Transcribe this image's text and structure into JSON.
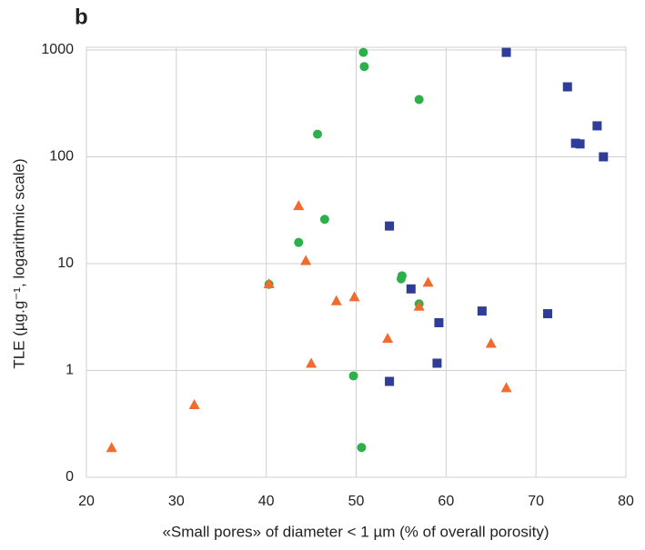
{
  "chart_data": {
    "type": "scatter",
    "panel_label": "b",
    "x_label": "«Small pores» of diameter < 1 µm (% of overall porosity)",
    "y_label": "TLE (µg.g⁻¹, logarithmic scale)",
    "xlim": [
      20,
      80
    ],
    "xticks": [
      20,
      30,
      40,
      50,
      60,
      70,
      80
    ],
    "ylim": [
      0.1,
      1000
    ],
    "yticks": [
      {
        "value": 0.1,
        "label": "0"
      },
      1,
      10,
      100,
      1000
    ],
    "log_y": true,
    "grid": true,
    "series": [
      {
        "color": "#2e3d98",
        "marker": "square",
        "x": [
          66.7,
          73.5,
          76.8,
          74.4,
          74.9,
          77.5,
          53.7,
          56.1,
          59.2,
          64.0,
          71.3,
          59.0,
          53.7
        ],
        "values": [
          950,
          452,
          195,
          134,
          132,
          100,
          22.5,
          5.8,
          2.8,
          3.6,
          3.4,
          1.17,
          0.79
        ]
      },
      {
        "color": "#2db04b",
        "marker": "circle",
        "x": [
          50.8,
          50.9,
          57.0,
          45.7,
          46.5,
          43.6,
          40.3,
          55.1,
          55.0,
          57.0,
          49.7,
          50.6
        ],
        "values": [
          950,
          700,
          344,
          163,
          26,
          15.8,
          6.4,
          7.7,
          7.2,
          4.2,
          0.89,
          0.19
        ]
      },
      {
        "color": "#f26a2e",
        "marker": "triangle",
        "x": [
          22.8,
          32.0,
          40.3,
          43.6,
          44.4,
          45.0,
          47.8,
          49.8,
          53.5,
          57.0,
          58.0,
          65.0,
          66.7
        ],
        "values": [
          0.19,
          0.48,
          6.5,
          35,
          10.7,
          1.17,
          4.5,
          4.9,
          2.0,
          4.0,
          6.7,
          1.8,
          0.69
        ]
      }
    ]
  }
}
